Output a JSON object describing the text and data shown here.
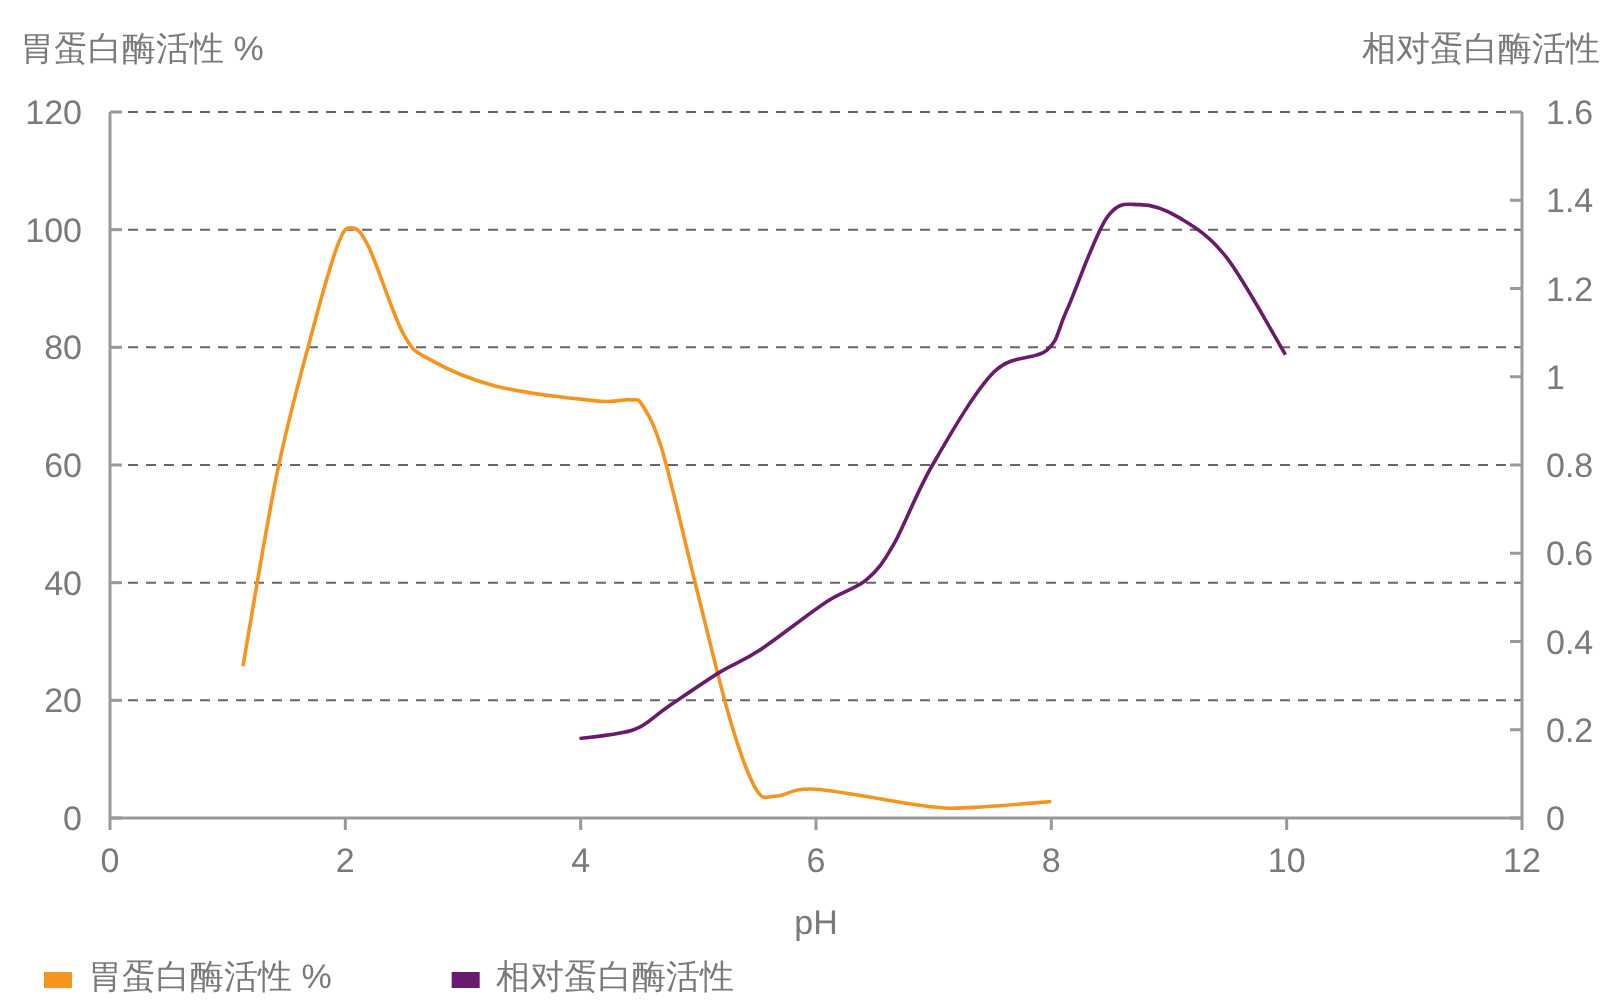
{
  "chart_data": {
    "type": "line",
    "xlabel": "pH",
    "ylabel": "胃蛋白酶活性 %",
    "y2label": "相对蛋白酶活性",
    "xlim": [
      0,
      12
    ],
    "xticks": [
      0,
      2,
      4,
      6,
      8,
      10,
      12
    ],
    "ylim": [
      0,
      120
    ],
    "yticks": [
      0,
      20,
      40,
      60,
      80,
      100,
      120
    ],
    "y2lim": [
      0,
      1.6
    ],
    "y2ticks": [
      0,
      0.2,
      0.4,
      0.6,
      0.8,
      1,
      1.2,
      1.4,
      1.6
    ],
    "grid": "y",
    "legend": "bottom",
    "marker": "none",
    "line_style": "solid",
    "series": [
      {
        "name": "胃蛋白酶活性 %",
        "color": "#f7941d",
        "x": [
          1.13,
          1.42,
          1.7,
          1.93,
          2.05,
          2.2,
          2.49,
          2.72,
          3.28,
          4.13,
          4.42,
          4.53,
          4.7,
          4.98,
          5.27,
          5.49,
          5.66,
          6.0,
          6.94,
          7.34,
          8.0
        ],
        "values": [
          25.8,
          58.6,
          81.3,
          97.1,
          100.3,
          97,
          82.4,
          77.9,
          73.4,
          70.9,
          71.1,
          70,
          62,
          39.4,
          16.7,
          4.9,
          3.7,
          4.9,
          2.0,
          1.8,
          2.8
        ]
      },
      {
        "name": "相对蛋白酶活性",
        "color": "#6a1b6e",
        "axis": "y2",
        "x": [
          3.99,
          4.45,
          4.73,
          5.18,
          5.52,
          6.09,
          6.43,
          6.66,
          6.99,
          7.51,
          7.96,
          8.13,
          8.47,
          8.75,
          9.09,
          9.49,
          9.99
        ],
        "values": [
          0.18,
          0.2,
          0.25,
          0.33,
          0.38,
          0.49,
          0.54,
          0.62,
          0.8,
          1.01,
          1.06,
          1.15,
          1.36,
          1.39,
          1.36,
          1.27,
          1.05
        ]
      }
    ]
  }
}
